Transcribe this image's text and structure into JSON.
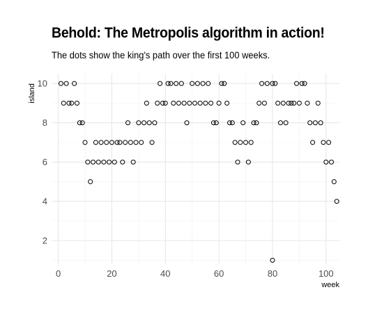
{
  "chart_data": {
    "type": "scatter",
    "title": "Behold: The Metropolis algorithm in action!",
    "subtitle": "The dots show the king's path over the first 100 weeks.",
    "xlabel": "week",
    "ylabel": "island",
    "xlim": [
      -2.5,
      105
    ],
    "ylim": [
      0.8,
      10.5
    ],
    "x_ticks": [
      0,
      20,
      40,
      60,
      80,
      100
    ],
    "y_ticks": [
      2,
      4,
      6,
      8,
      10
    ],
    "grid": true,
    "points": [
      {
        "x": 1,
        "y": 10
      },
      {
        "x": 2,
        "y": 9
      },
      {
        "x": 3,
        "y": 10
      },
      {
        "x": 4,
        "y": 9
      },
      {
        "x": 5,
        "y": 9
      },
      {
        "x": 6,
        "y": 10
      },
      {
        "x": 7,
        "y": 9
      },
      {
        "x": 8,
        "y": 8
      },
      {
        "x": 9,
        "y": 8
      },
      {
        "x": 10,
        "y": 7
      },
      {
        "x": 11,
        "y": 6
      },
      {
        "x": 12,
        "y": 5
      },
      {
        "x": 13,
        "y": 6
      },
      {
        "x": 14,
        "y": 7
      },
      {
        "x": 15,
        "y": 6
      },
      {
        "x": 16,
        "y": 7
      },
      {
        "x": 17,
        "y": 6
      },
      {
        "x": 18,
        "y": 7
      },
      {
        "x": 19,
        "y": 6
      },
      {
        "x": 20,
        "y": 7
      },
      {
        "x": 21,
        "y": 6
      },
      {
        "x": 22,
        "y": 7
      },
      {
        "x": 23,
        "y": 7
      },
      {
        "x": 24,
        "y": 6
      },
      {
        "x": 25,
        "y": 7
      },
      {
        "x": 26,
        "y": 8
      },
      {
        "x": 27,
        "y": 7
      },
      {
        "x": 28,
        "y": 6
      },
      {
        "x": 29,
        "y": 7
      },
      {
        "x": 30,
        "y": 8
      },
      {
        "x": 31,
        "y": 7
      },
      {
        "x": 32,
        "y": 8
      },
      {
        "x": 33,
        "y": 9
      },
      {
        "x": 34,
        "y": 8
      },
      {
        "x": 35,
        "y": 7
      },
      {
        "x": 36,
        "y": 8
      },
      {
        "x": 37,
        "y": 9
      },
      {
        "x": 38,
        "y": 10
      },
      {
        "x": 39,
        "y": 9
      },
      {
        "x": 40,
        "y": 9
      },
      {
        "x": 41,
        "y": 10
      },
      {
        "x": 42,
        "y": 10
      },
      {
        "x": 43,
        "y": 9
      },
      {
        "x": 44,
        "y": 10
      },
      {
        "x": 45,
        "y": 9
      },
      {
        "x": 46,
        "y": 10
      },
      {
        "x": 47,
        "y": 9
      },
      {
        "x": 48,
        "y": 8
      },
      {
        "x": 49,
        "y": 9
      },
      {
        "x": 50,
        "y": 10
      },
      {
        "x": 51,
        "y": 9
      },
      {
        "x": 52,
        "y": 10
      },
      {
        "x": 53,
        "y": 9
      },
      {
        "x": 54,
        "y": 10
      },
      {
        "x": 55,
        "y": 9
      },
      {
        "x": 56,
        "y": 10
      },
      {
        "x": 57,
        "y": 9
      },
      {
        "x": 58,
        "y": 8
      },
      {
        "x": 59,
        "y": 8
      },
      {
        "x": 60,
        "y": 9
      },
      {
        "x": 61,
        "y": 10
      },
      {
        "x": 62,
        "y": 10
      },
      {
        "x": 63,
        "y": 9
      },
      {
        "x": 64,
        "y": 8
      },
      {
        "x": 65,
        "y": 8
      },
      {
        "x": 66,
        "y": 7
      },
      {
        "x": 67,
        "y": 6
      },
      {
        "x": 68,
        "y": 7
      },
      {
        "x": 69,
        "y": 8
      },
      {
        "x": 70,
        "y": 7
      },
      {
        "x": 71,
        "y": 6
      },
      {
        "x": 72,
        "y": 7
      },
      {
        "x": 73,
        "y": 8
      },
      {
        "x": 74,
        "y": 8
      },
      {
        "x": 75,
        "y": 9
      },
      {
        "x": 76,
        "y": 10
      },
      {
        "x": 77,
        "y": 9
      },
      {
        "x": 78,
        "y": 10
      },
      {
        "x": 80,
        "y": 1
      },
      {
        "x": 80,
        "y": 10
      },
      {
        "x": 81,
        "y": 10
      },
      {
        "x": 82,
        "y": 9
      },
      {
        "x": 83,
        "y": 8
      },
      {
        "x": 84,
        "y": 9
      },
      {
        "x": 85,
        "y": 8
      },
      {
        "x": 86,
        "y": 9
      },
      {
        "x": 87,
        "y": 9
      },
      {
        "x": 88,
        "y": 9
      },
      {
        "x": 89,
        "y": 10
      },
      {
        "x": 90,
        "y": 9
      },
      {
        "x": 91,
        "y": 10
      },
      {
        "x": 92,
        "y": 10
      },
      {
        "x": 93,
        "y": 9
      },
      {
        "x": 94,
        "y": 8
      },
      {
        "x": 95,
        "y": 7
      },
      {
        "x": 96,
        "y": 8
      },
      {
        "x": 97,
        "y": 9
      },
      {
        "x": 98,
        "y": 8
      },
      {
        "x": 99,
        "y": 7
      },
      {
        "x": 100,
        "y": 6
      },
      {
        "x": 101,
        "y": 7
      },
      {
        "x": 102,
        "y": 6
      },
      {
        "x": 103,
        "y": 5
      },
      {
        "x": 104,
        "y": 4
      }
    ]
  }
}
